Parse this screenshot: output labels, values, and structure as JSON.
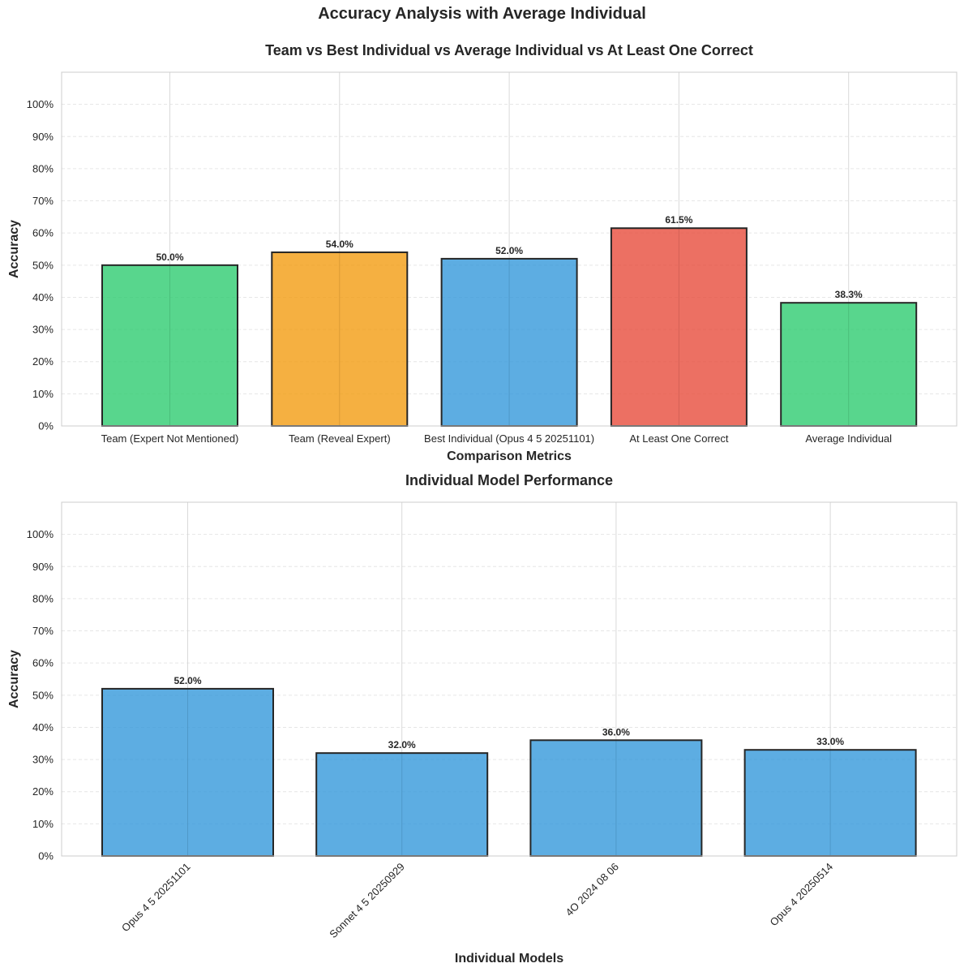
{
  "figure_title": "Accuracy Analysis with Average Individual",
  "colors": {
    "green": "#2ecc71",
    "orange": "#f39c12",
    "blue": "#3498db",
    "red": "#e74c3c",
    "edge": "#262626",
    "grid": "#e6e6e6",
    "spine": "#cccccc"
  },
  "chart_data": [
    {
      "type": "bar",
      "title": "Team vs Best Individual vs Average Individual vs At Least One Correct",
      "xlabel": "Comparison Metrics",
      "ylabel": "Accuracy",
      "ylim": [
        0,
        1.1
      ],
      "yticks": [
        "0%",
        "10%",
        "20%",
        "30%",
        "40%",
        "50%",
        "60%",
        "70%",
        "80%",
        "90%",
        "100%"
      ],
      "categories": [
        "Team (Expert Not Mentioned)",
        "Team (Reveal Expert)",
        "Best Individual (Opus 4 5 20251101)",
        "At Least One Correct",
        "Average Individual"
      ],
      "values": [
        0.5,
        0.54,
        0.52,
        0.615,
        0.383
      ],
      "value_labels": [
        "50.0%",
        "54.0%",
        "52.0%",
        "61.5%",
        "38.3%"
      ],
      "bar_colors": [
        "green",
        "orange",
        "blue",
        "red",
        "green"
      ],
      "grid": true
    },
    {
      "type": "bar",
      "title": "Individual Model Performance",
      "xlabel": "Individual Models",
      "ylabel": "Accuracy",
      "ylim": [
        0,
        1.1
      ],
      "yticks": [
        "0%",
        "10%",
        "20%",
        "30%",
        "40%",
        "50%",
        "60%",
        "70%",
        "80%",
        "90%",
        "100%"
      ],
      "categories": [
        "Opus 4 5 20251101",
        "Sonnet 4 5 20250929",
        "4O 2024 08 06",
        "Opus 4 20250514"
      ],
      "values": [
        0.52,
        0.32,
        0.36,
        0.33
      ],
      "value_labels": [
        "52.0%",
        "32.0%",
        "36.0%",
        "33.0%"
      ],
      "bar_colors": [
        "blue",
        "blue",
        "blue",
        "blue"
      ],
      "grid": true
    }
  ]
}
